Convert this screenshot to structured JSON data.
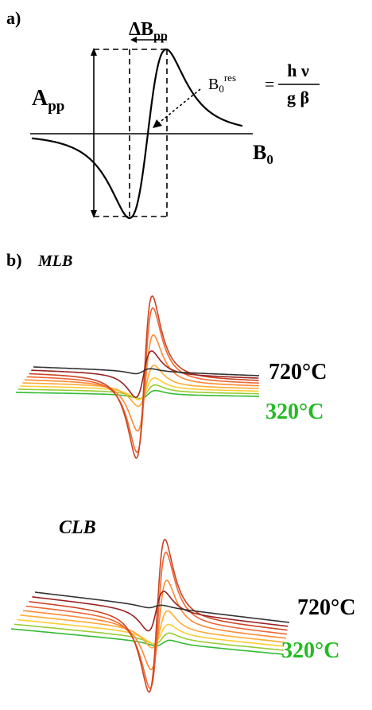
{
  "panel_a": {
    "label": "a)",
    "delta_b": "ΔB",
    "delta_b_sub": "pp",
    "amp": "A",
    "amp_sub": "pp",
    "b0_axis": "B",
    "b0_axis_sub": "0",
    "resonance": {
      "lhs_main": "B",
      "lhs_sub": "0",
      "lhs_sup": "res",
      "equals": "=",
      "numerator": "h ν",
      "denominator": "g β"
    }
  },
  "panel_b": {
    "label": "b)",
    "samples": [
      {
        "name": "MLB",
        "temp_high": "720°C",
        "temp_low": "320°C",
        "color_high": "#000000",
        "color_low": "#22bb22"
      },
      {
        "name": "CLB",
        "temp_high": "720°C",
        "temp_low": "320°C",
        "color_high": "#000000",
        "color_low": "#22bb22"
      }
    ],
    "trace_colors": [
      "#33bb33",
      "#99cc33",
      "#ffcc33",
      "#ffaa33",
      "#ff8833",
      "#ee6633",
      "#cc4422",
      "#992222",
      "#333333"
    ]
  }
}
